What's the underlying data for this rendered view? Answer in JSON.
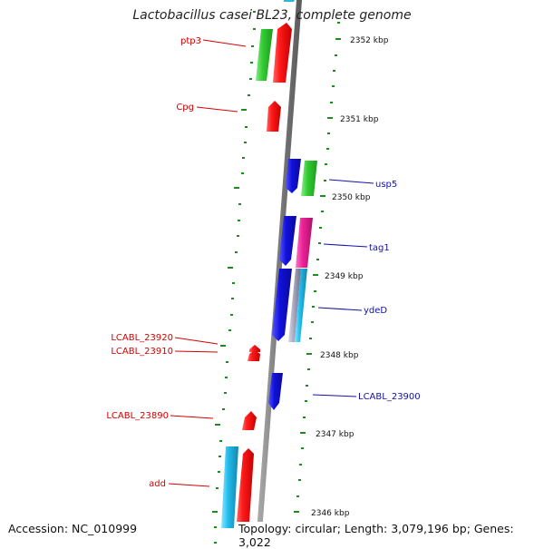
{
  "title": "Lactobacillus casei BL23, complete genome",
  "footer": {
    "accession": "Accession: NC_010999",
    "summary": "Topology: circular; Length: 3,079,196 bp; Genes: 3,022"
  },
  "colors": {
    "backbone": "#8a8a8a",
    "tick": "#1f8a1f",
    "left_label": "#d40000",
    "right_label": "#1111aa"
  },
  "ruler": [
    "2352 kbp",
    "2351 kbp",
    "2350 kbp",
    "2349 kbp",
    "2348 kbp",
    "2347 kbp",
    "2346 kbp"
  ],
  "gene_labels_left": [
    "ptp3",
    "Cpg",
    "LCABL_23920",
    "LCABL_23910",
    "LCABL_23890",
    "add"
  ],
  "gene_labels_right": [
    "usp5",
    "tag1",
    "ydeD",
    "LCABL_23900"
  ],
  "features": [
    {
      "name": "ptp3-forward",
      "color": "#ee1111"
    },
    {
      "name": "ptp3-cog",
      "color": "#33cc33"
    },
    {
      "name": "cpg-forward",
      "color": "#ee1111"
    },
    {
      "name": "usp5-reverse",
      "color": "#1111dd"
    },
    {
      "name": "usp5-cog",
      "color": "#33cc33"
    },
    {
      "name": "tag1-reverse",
      "color": "#1111dd"
    },
    {
      "name": "tag1-cog",
      "color": "#ee2299"
    },
    {
      "name": "ydeD-reverse",
      "color": "#1111dd"
    },
    {
      "name": "ydeD-cog-grey",
      "color": "#a0a0b8"
    },
    {
      "name": "ydeD-cog-cyan",
      "color": "#22bbdd"
    },
    {
      "name": "lcabl-23920-forward",
      "color": "#ee1111"
    },
    {
      "name": "lcabl-23910-forward",
      "color": "#ee1111"
    },
    {
      "name": "lcabl-23900-reverse",
      "color": "#1111dd"
    },
    {
      "name": "lcabl-23890-forward",
      "color": "#ee1111"
    },
    {
      "name": "add-forward",
      "color": "#ee1111"
    },
    {
      "name": "add-cog",
      "color": "#22bbee"
    }
  ]
}
